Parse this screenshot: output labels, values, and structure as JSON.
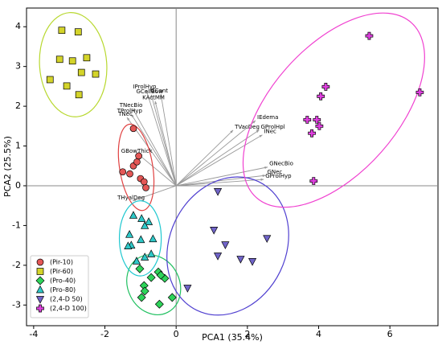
{
  "chart_data": {
    "type": "scatter",
    "xlabel": "PCA1 (35.4%)",
    "ylabel": "PCA2 (25.5%)",
    "xlim": [
      -4.2,
      7.35
    ],
    "ylim": [
      -3.52,
      4.47
    ],
    "xticks": [
      -4,
      -2,
      0,
      2,
      4,
      6
    ],
    "yticks": [
      -3,
      -2,
      -1,
      0,
      1,
      2,
      3,
      4
    ],
    "legend": "lower left",
    "series": [
      {
        "name": "(Pir-10)",
        "marker": "circle",
        "color": "#e45756",
        "ellipse_color": "#e04040",
        "x": [
          -1.2,
          -1.2,
          -1.1,
          -1.05,
          -1.5,
          -1.3,
          -1.0,
          -0.9,
          -0.85
        ],
        "y": [
          1.44,
          0.5,
          0.6,
          0.75,
          0.35,
          0.3,
          0.18,
          0.1,
          -0.05
        ]
      },
      {
        "name": "(Pir-60)",
        "marker": "square",
        "color": "#d4d42a",
        "ellipse_color": "#b8d830",
        "x": [
          -3.21,
          -2.75,
          -3.27,
          -2.91,
          -2.51,
          -3.54,
          -2.66,
          -2.26,
          -3.07,
          -2.73
        ],
        "y": [
          3.91,
          3.87,
          3.18,
          3.14,
          3.22,
          2.67,
          2.85,
          2.81,
          2.51,
          2.29
        ]
      },
      {
        "name": "(Pro-40)",
        "marker": "diamond",
        "color": "#2ed45a",
        "ellipse_color": "#20c060",
        "x": [
          -0.5,
          -0.32,
          -0.7,
          -0.43,
          -0.9,
          -0.88,
          -0.97,
          -0.11,
          -0.47,
          -1.02
        ],
        "y": [
          -2.17,
          -2.33,
          -2.31,
          -2.25,
          -2.51,
          -2.65,
          -2.81,
          -2.81,
          -2.98,
          -2.09
        ]
      },
      {
        "name": "(Pro-80)",
        "marker": "triangle",
        "color": "#2ec8c8",
        "ellipse_color": "#20c8d0",
        "x": [
          -1.2,
          -0.97,
          -0.77,
          -0.88,
          -1.31,
          -0.65,
          -0.99,
          -1.26,
          -1.35,
          -0.7,
          -0.88,
          -1.11
        ],
        "y": [
          -0.75,
          -0.83,
          -0.91,
          -1.01,
          -1.23,
          -1.34,
          -1.36,
          -1.5,
          -1.52,
          -1.72,
          -1.8,
          -1.9
        ]
      },
      {
        "name": "(2,4-D 50)",
        "marker": "triangle-down",
        "color": "#7064c8",
        "ellipse_color": "#5040d0",
        "x": [
          1.17,
          1.06,
          1.38,
          2.55,
          1.81,
          2.14,
          1.17,
          0.32
        ],
        "y": [
          -0.14,
          -1.11,
          -1.48,
          -1.32,
          -1.84,
          -1.9,
          -1.76,
          -2.57
        ]
      },
      {
        "name": "(2,4-D 100)",
        "marker": "plus",
        "color": "#e040e0",
        "ellipse_color": "#f040d0",
        "x": [
          5.42,
          4.2,
          4.06,
          3.68,
          3.95,
          4.02,
          3.81,
          3.86,
          6.84
        ],
        "y": [
          3.77,
          2.49,
          2.25,
          1.66,
          1.66,
          1.5,
          1.32,
          0.12,
          2.35
        ]
      }
    ],
    "loadings": {
      "color": "#999999",
      "names": [
        "IProlHyp",
        "GCellBow",
        "GCont",
        "KActMM",
        "TNecBio",
        "TProlHyp",
        "TNec",
        "GBowThick",
        "TVacDeg",
        "IEdema",
        "GProlHpl",
        "INec",
        "GNecBio",
        "GNec",
        "GProlHyp",
        "THyalDeg"
      ],
      "x": [
        -0.84,
        -0.7,
        -0.43,
        -0.59,
        -1.22,
        -1.26,
        -1.38,
        -1.06,
        1.6,
        2.23,
        2.33,
        2.42,
        2.57,
        2.51,
        2.46,
        -1.22
      ],
      "y": [
        2.41,
        2.29,
        2.31,
        2.13,
        1.94,
        1.8,
        1.72,
        0.79,
        1.4,
        1.64,
        1.4,
        1.28,
        0.47,
        0.26,
        0.16,
        -0.38
      ]
    }
  }
}
